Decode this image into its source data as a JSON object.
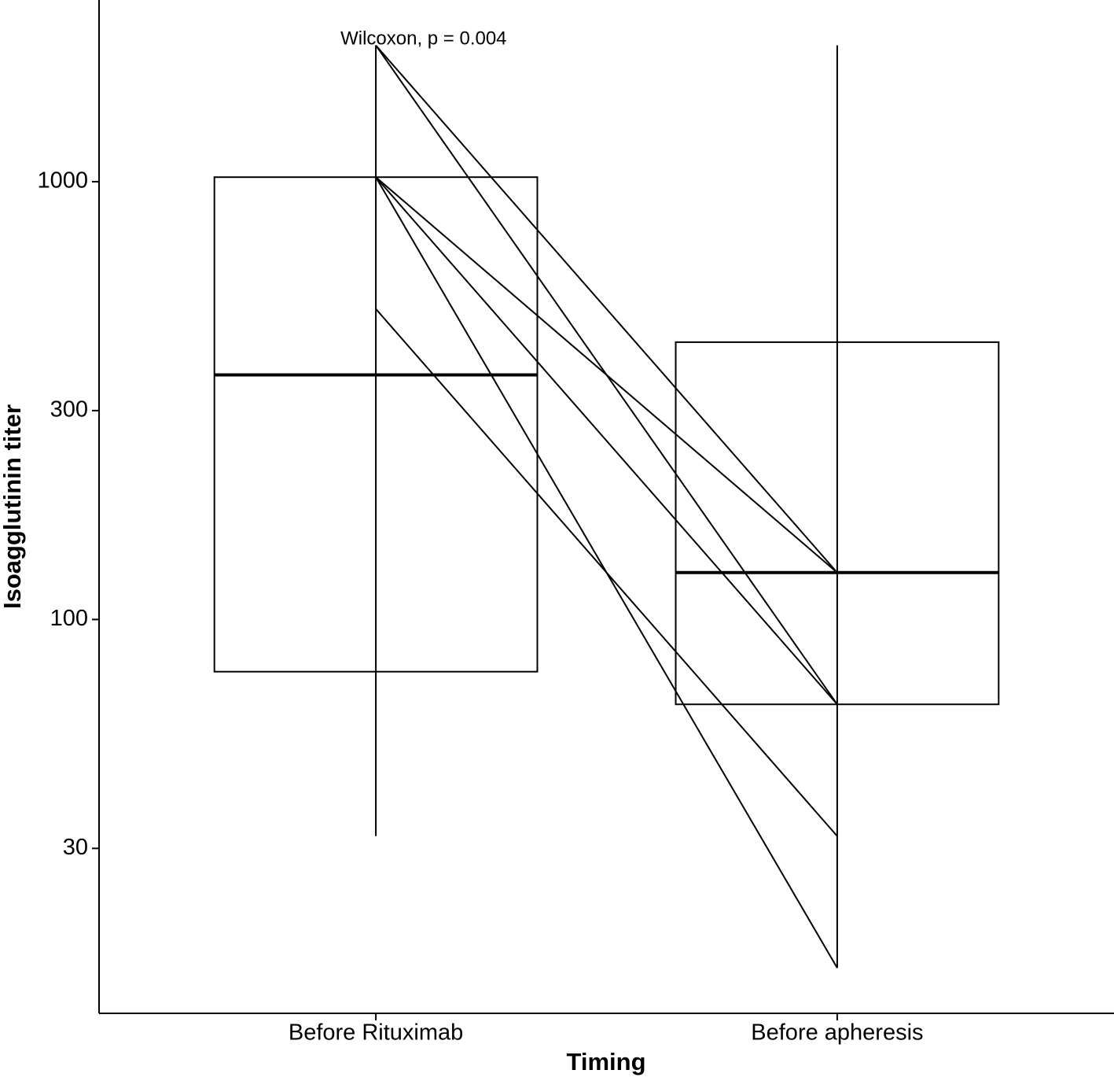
{
  "chart_data": {
    "type": "box",
    "annotation": "Wilcoxon, p = 0.004",
    "x_label": "Timing",
    "y_label": "Isoagglutinin titer",
    "categories": [
      "Before Rituximab",
      "Before apheresis"
    ],
    "boxes": [
      {
        "min": 32,
        "q1": 76,
        "median": 362,
        "q3": 1024,
        "max": 2048
      },
      {
        "min": 16,
        "q1": 64,
        "median": 128,
        "q3": 430,
        "max": 2048
      }
    ],
    "pairs": [
      [
        2048,
        128
      ],
      [
        2048,
        64
      ],
      [
        1024,
        128
      ],
      [
        1024,
        64
      ],
      [
        1024,
        16
      ],
      [
        512,
        32
      ]
    ],
    "log_scale": true,
    "ylim": [
      12.6,
      2600
    ],
    "yticks": [
      30,
      100,
      300,
      1000
    ],
    "color": "#000000"
  }
}
